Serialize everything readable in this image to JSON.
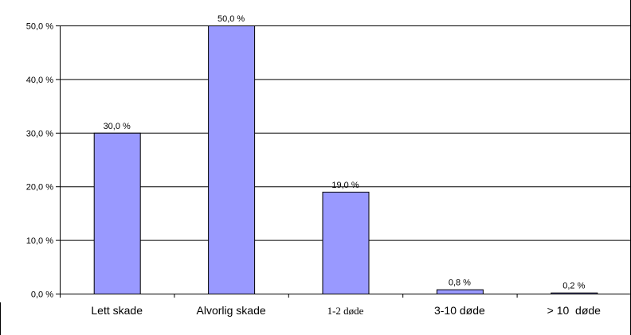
{
  "chart_data": {
    "type": "bar",
    "title": "",
    "xlabel": "",
    "ylabel": "",
    "categories": [
      "Lett skade",
      "Alvorlig skade",
      "1-2 døde",
      "3-10 døde",
      "> 10  døde"
    ],
    "values": [
      30.0,
      50.0,
      19.0,
      0.8,
      0.2
    ],
    "data_labels": [
      "30,0 %",
      "50,0 %",
      "19,0 %",
      "0,8 %",
      "0,2 %"
    ],
    "ylim": [
      0,
      50
    ],
    "y_ticks": [
      0,
      10,
      20,
      30,
      40,
      50
    ],
    "y_tick_labels": [
      "0,0 %",
      "10,0 %",
      "20,0 %",
      "30,0 %",
      "40,0 %",
      "50,0 %"
    ],
    "grid": true,
    "legend": "none",
    "colors": {
      "bar_fill": "#9999ff",
      "bar_stroke": "#000000",
      "grid": "#000000",
      "axis": "#000000"
    }
  }
}
